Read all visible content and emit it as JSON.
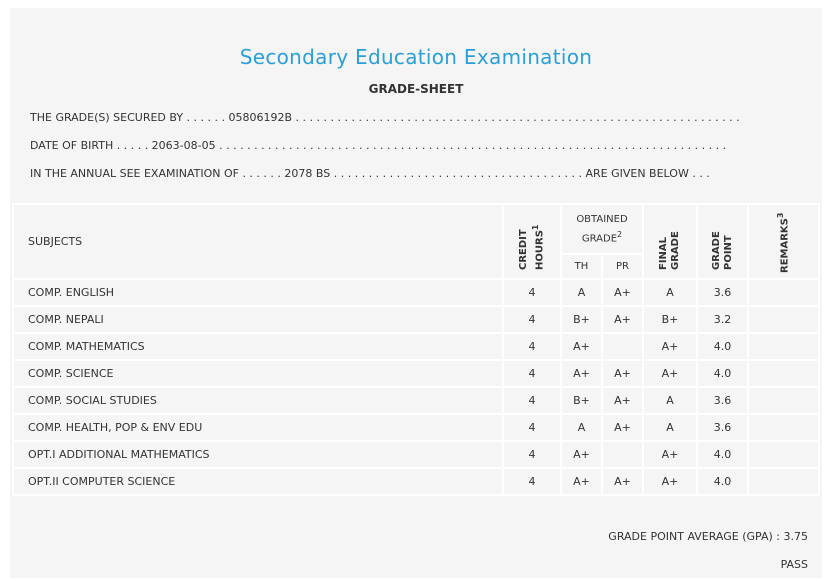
{
  "header": {
    "title": "Secondary Education Examination",
    "subtitle": "GRADE-SHEET"
  },
  "details": [
    "THE GRADE(S) SECURED BY . . . . . . 05806192B . . . . . . . . . . . . . . . . . . . . . . . . . . . . . . . . . . . . . . . . . . . . . . . . . . . . . . . . . . . . . . . .",
    "DATE OF BIRTH . . . . . 2063-08-05 . . . . . . . . . . . . . . . . . . . . . . . . . . . . . . . . . . . . . . . . . . . . . . . . . . . . . . . . . . . . . . . . . . . . . . . . .",
    "IN THE ANNUAL SEE EXAMINATION OF . . . . . . 2078 BS . . . . . . . . . . . . . . . . . . . . . . . . . . . . . . . . . . . . ARE GIVEN BELOW . . ."
  ],
  "table": {
    "columns": [
      "SUBJECTS",
      {
        "label": "CREDIT HOURS",
        "note": "1"
      },
      {
        "label": "OBTAINED GRADE",
        "note": "2"
      },
      "FINAL GRADE",
      "GRADE POINT",
      {
        "label": "REMARKS",
        "note": "3"
      }
    ],
    "subcolumns": [
      "TH",
      "PR"
    ],
    "rows": [
      [
        "COMP. ENGLISH",
        "4",
        "A",
        "A+",
        "A",
        "3.6"
      ],
      [
        "COMP. NEPALI",
        "4",
        "B+",
        "A+",
        "B+",
        "3.2"
      ],
      [
        "COMP. MATHEMATICS",
        "4",
        "A+",
        null,
        "A+",
        "4.0"
      ],
      [
        "COMP. SCIENCE",
        "4",
        "A+",
        "A+",
        "A+",
        "4.0"
      ],
      [
        "COMP. SOCIAL STUDIES",
        "4",
        "B+",
        "A+",
        "A",
        "3.6"
      ],
      [
        "COMP. HEALTH, POP & ENV EDU",
        "4",
        "A",
        "A+",
        "A",
        "3.6"
      ],
      [
        "OPT.I ADDITIONAL MATHEMATICS",
        "4",
        "A+",
        null,
        "A+",
        "4.0"
      ],
      [
        "OPT.II COMPUTER SCIENCE",
        "4",
        "A+",
        "A+",
        "A+",
        "4.0"
      ]
    ]
  },
  "footer": {
    "gpa": "GRADE POINT AVERAGE (GPA) : 3.75",
    "result": "PASS"
  }
}
